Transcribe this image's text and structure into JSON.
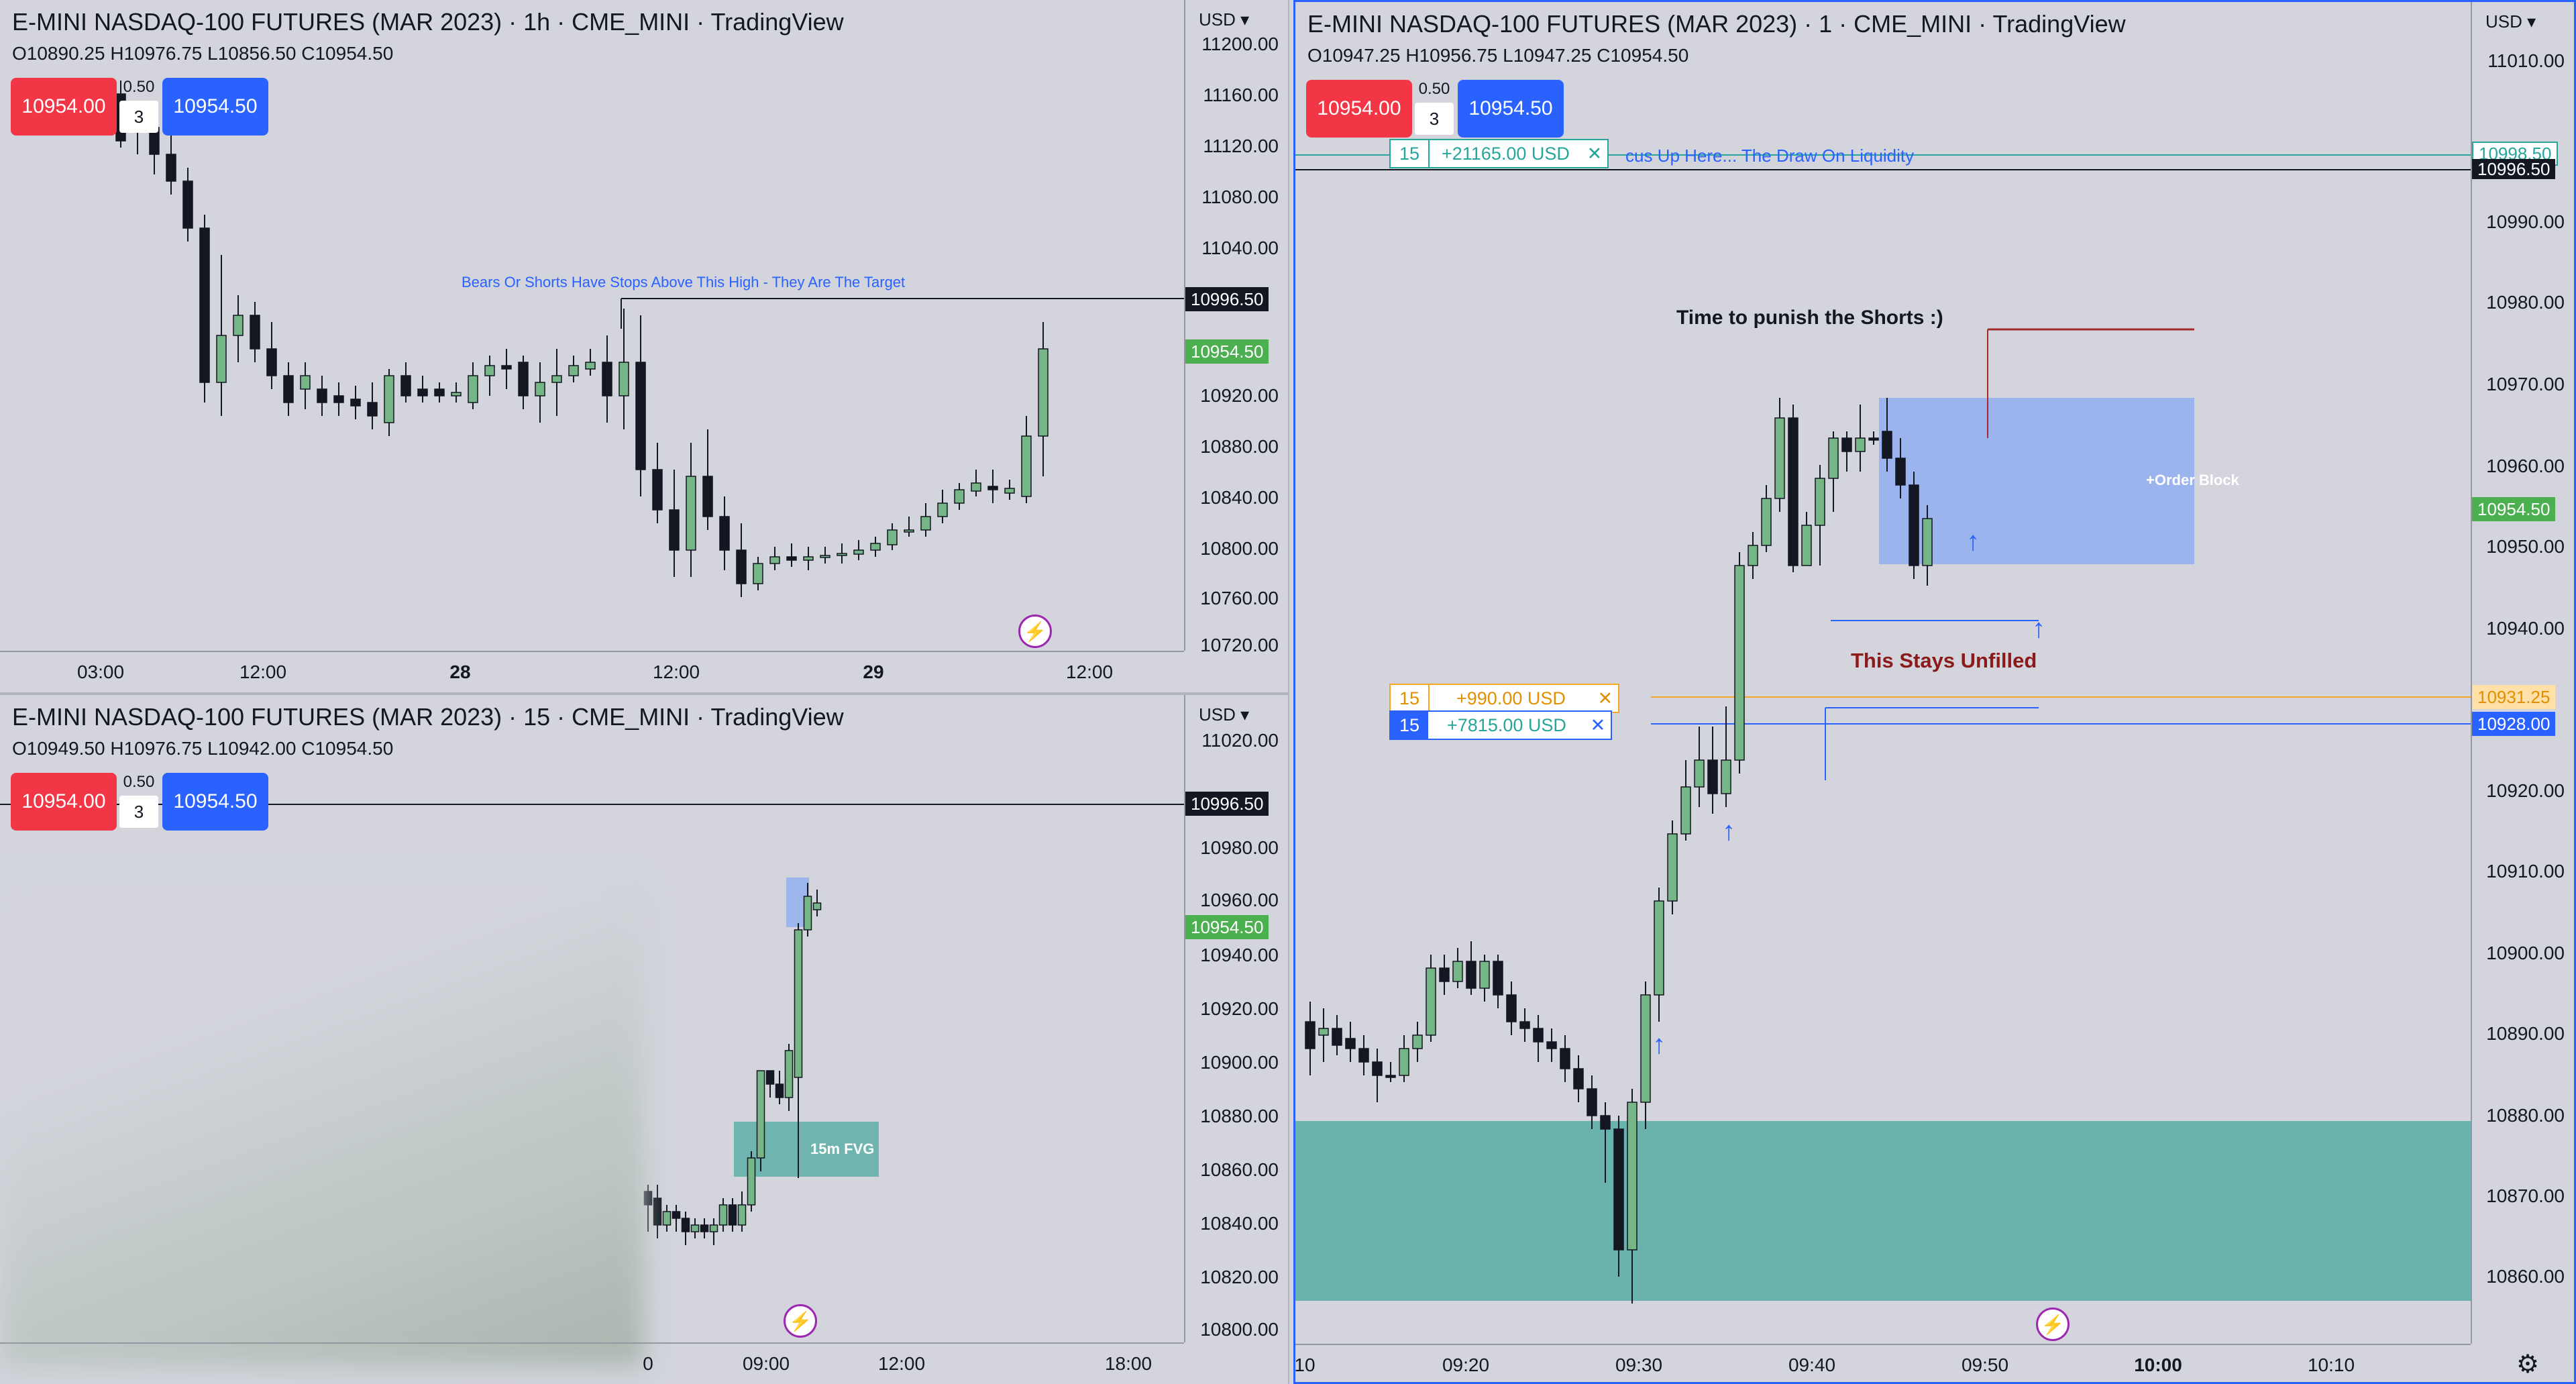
{
  "colors": {
    "up": "#76b585",
    "down": "#131722",
    "bg": "#d3d4dc",
    "sell": "#f23645",
    "buy": "#2962ff",
    "fvg": "#64b0aa",
    "ob": "#90aef0"
  },
  "top_left": {
    "title": "E-MINI NASDAQ-100 FUTURES (MAR 2023) · 1h · CME_MINI · TradingView",
    "ohlc": "O10890.25  H10976.75  L10856.50  C10954.50",
    "sell": "10954.00",
    "buy": "10954.50",
    "qty": "3",
    "spread": "0.50",
    "currency": "USD",
    "y_ticks": [
      "11200.00",
      "11160.00",
      "11120.00",
      "11080.00",
      "11040.00",
      "10920.00",
      "10880.00",
      "10840.00",
      "10800.00",
      "10760.00",
      "10720.00"
    ],
    "x_ticks": [
      "03:00",
      "12:00",
      "28",
      "12:00",
      "29",
      "12:00"
    ],
    "price_black": "10996.50",
    "price_green": "10954.50",
    "annotation": "Bears Or Shorts Have Stops Above This High - They Are The Target"
  },
  "bottom_left": {
    "title": "E-MINI NASDAQ-100 FUTURES (MAR 2023) · 15 · CME_MINI · TradingView",
    "ohlc": "O10949.50  H10976.75  L10942.00  C10954.50",
    "sell": "10954.00",
    "buy": "10954.50",
    "qty": "3",
    "spread": "0.50",
    "currency": "USD",
    "y_ticks": [
      "11020.00",
      "10980.00",
      "10960.00",
      "10940.00",
      "10920.00",
      "10900.00",
      "10880.00",
      "10860.00",
      "10840.00",
      "10820.00",
      "10800.00"
    ],
    "x_ticks": [
      "0",
      "09:00",
      "12:00",
      "18:00"
    ],
    "price_black": "10996.50",
    "price_green": "10954.50",
    "fvg_label": "15m FVG"
  },
  "right": {
    "title": "E-MINI NASDAQ-100 FUTURES (MAR 2023) · 1 · CME_MINI · TradingView",
    "ohlc": "O10947.25  H10956.75  L10947.25  C10954.50",
    "sell": "10954.00",
    "buy": "10954.50",
    "qty": "3",
    "spread": "0.50",
    "currency": "USD",
    "y_ticks": [
      "11010.00",
      "10990.00",
      "10980.00",
      "10970.00",
      "10960.00",
      "10950.00",
      "10940.00",
      "10920.00",
      "10910.00",
      "10900.00",
      "10890.00",
      "10880.00",
      "10870.00",
      "10860.00"
    ],
    "x_ticks": [
      "10",
      "09:20",
      "09:30",
      "09:40",
      "09:50",
      "10:00",
      "10:10"
    ],
    "price_teal": "10998.50",
    "price_black": "10996.50",
    "price_green": "10954.50",
    "price_orange": "10931.25",
    "price_blue": "10928.00",
    "positions": [
      {
        "qty": "15",
        "pnl": "+21165.00 USD"
      },
      {
        "qty": "15",
        "pnl": "+990.00 USD"
      },
      {
        "qty": "15",
        "pnl": "+7815.00 USD"
      }
    ],
    "liquidity_note": "cus Up Here... The Draw On Liquidity",
    "punish_note": "Time to punish the Shorts  :)",
    "unfilled_note": "This Stays Unfilled",
    "ob_label": "+Order Block"
  },
  "icons": {
    "close": "close-icon",
    "bolt": "lightning-icon",
    "gear": "gear-icon",
    "arrow": "arrow-up-icon",
    "chevron": "chevron-down-icon"
  }
}
